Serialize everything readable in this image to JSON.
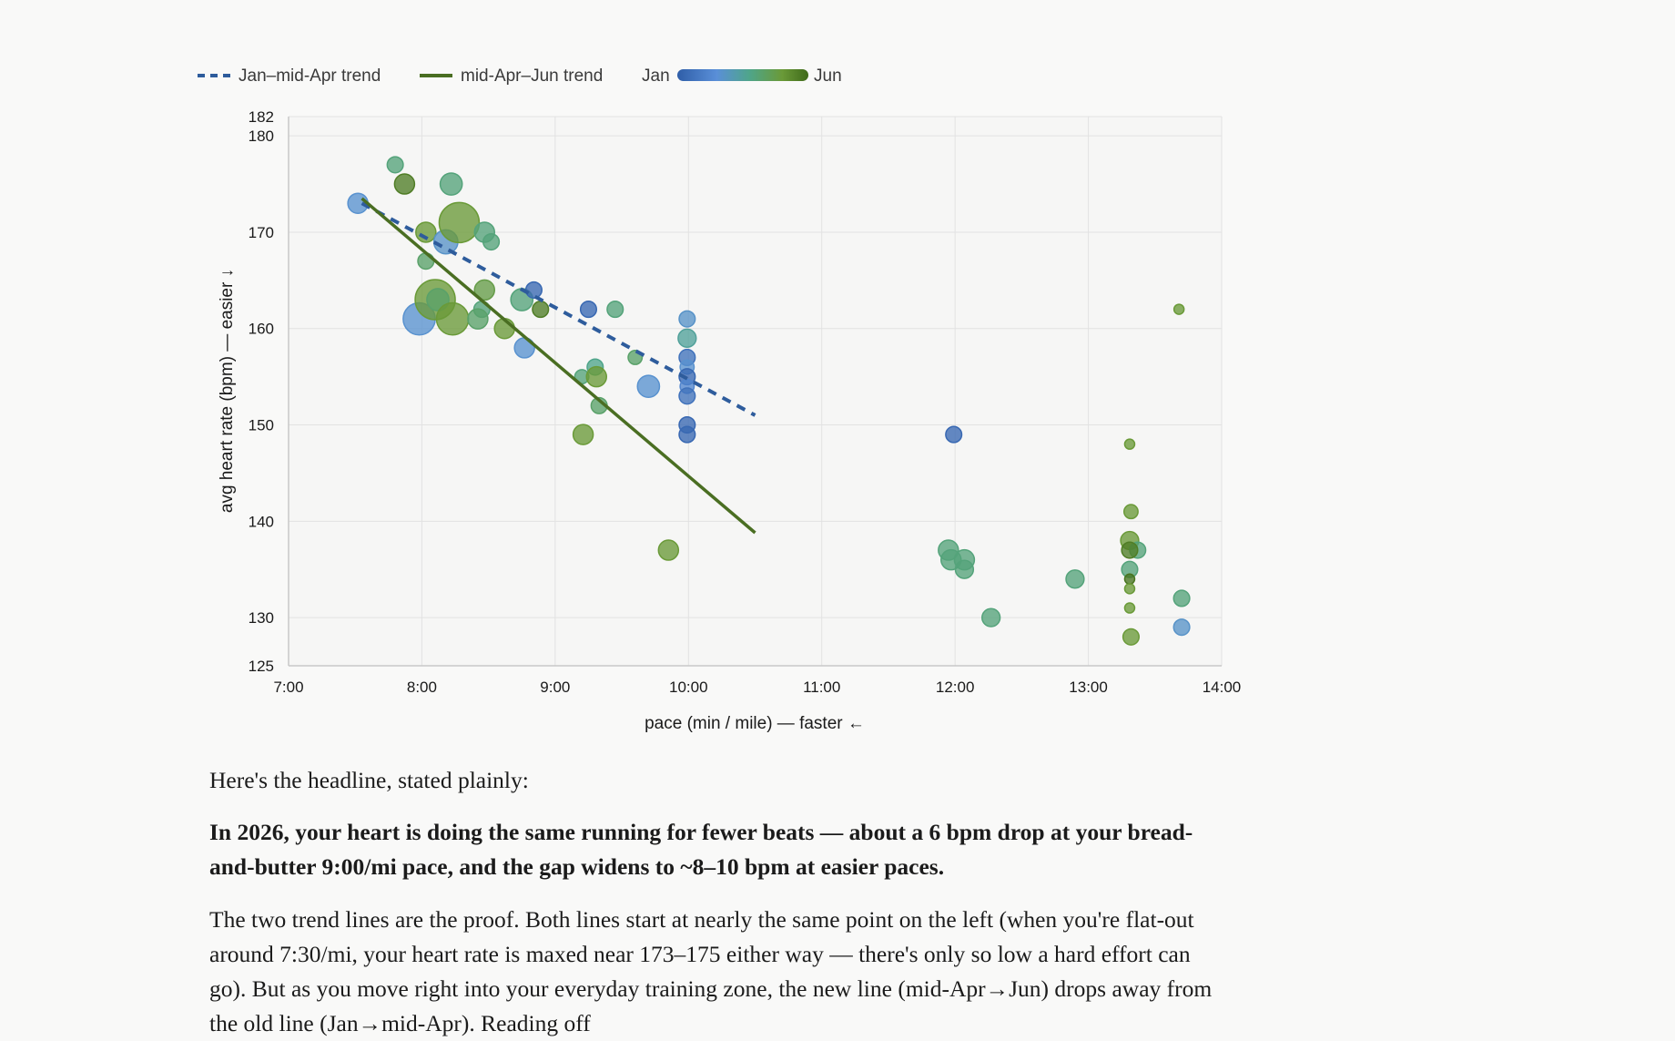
{
  "chart_data": {
    "type": "scatter",
    "xlabel": "pace  (min / mile)  —  faster ←",
    "ylabel": "avg heart rate (bpm)  —  easier ↓",
    "xlim": [
      7.0,
      14.0
    ],
    "ylim": [
      125,
      182
    ],
    "x_ticks": [
      7,
      8,
      9,
      10,
      11,
      12,
      13,
      14
    ],
    "x_tick_labels": [
      "7:00",
      "8:00",
      "9:00",
      "10:00",
      "11:00",
      "12:00",
      "13:00",
      "14:00"
    ],
    "y_ticks": [
      125,
      130,
      140,
      150,
      160,
      170,
      180,
      182
    ],
    "y_tick_labels": [
      "125",
      "130",
      "140",
      "150",
      "160",
      "170",
      "180",
      "182"
    ],
    "grid": true,
    "legend_position": "top-left",
    "legend": {
      "trend_a": "Jan–mid-Apr trend",
      "trend_b": "mid-Apr–Jun trend",
      "gradient_start": "Jan",
      "gradient_end": "Jun"
    },
    "colors": {
      "trend_a": "#2e5c9c",
      "trend_b": "#4a6e22",
      "gradient": [
        "#2f5ea8",
        "#5a8fd8",
        "#4fa58a",
        "#6a9a38",
        "#3f6a1a"
      ],
      "grid": "#e2e2e2",
      "axis": "#c8c8c8"
    },
    "trendlines": [
      {
        "name": "Jan–mid-Apr trend",
        "style": "dashed",
        "x": [
          7.55,
          10.5
        ],
        "y": [
          173.0,
          151.0
        ]
      },
      {
        "name": "mid-Apr–Jun trend",
        "style": "solid",
        "x": [
          7.55,
          10.5
        ],
        "y": [
          173.5,
          138.8
        ]
      }
    ],
    "point_encoding": {
      "color": "month_fraction_0_Jan_to_1_Jun",
      "size": "relative_marker_size"
    },
    "points": [
      {
        "x": 7.52,
        "y": 173,
        "size": 1.0,
        "month": 0.28
      },
      {
        "x": 7.8,
        "y": 177,
        "size": 0.8,
        "month": 0.55
      },
      {
        "x": 7.87,
        "y": 175,
        "size": 1.0,
        "month": 0.9
      },
      {
        "x": 8.22,
        "y": 175,
        "size": 1.1,
        "month": 0.55
      },
      {
        "x": 8.03,
        "y": 170,
        "size": 1.0,
        "month": 0.75
      },
      {
        "x": 8.18,
        "y": 169,
        "size": 1.2,
        "month": 0.3
      },
      {
        "x": 8.28,
        "y": 171,
        "size": 2.0,
        "month": 0.75
      },
      {
        "x": 8.47,
        "y": 170,
        "size": 1.0,
        "month": 0.55
      },
      {
        "x": 8.52,
        "y": 169,
        "size": 0.8,
        "month": 0.55
      },
      {
        "x": 8.03,
        "y": 167,
        "size": 0.8,
        "month": 0.6
      },
      {
        "x": 7.98,
        "y": 161,
        "size": 1.6,
        "month": 0.28
      },
      {
        "x": 8.1,
        "y": 163,
        "size": 2.0,
        "month": 0.75
      },
      {
        "x": 8.12,
        "y": 163,
        "size": 1.1,
        "month": 0.6
      },
      {
        "x": 8.23,
        "y": 161,
        "size": 1.6,
        "month": 0.75
      },
      {
        "x": 8.47,
        "y": 164,
        "size": 1.0,
        "month": 0.7
      },
      {
        "x": 8.45,
        "y": 162,
        "size": 0.8,
        "month": 0.55
      },
      {
        "x": 8.42,
        "y": 161,
        "size": 1.0,
        "month": 0.6
      },
      {
        "x": 8.62,
        "y": 160,
        "size": 1.0,
        "month": 0.75
      },
      {
        "x": 8.75,
        "y": 163,
        "size": 1.1,
        "month": 0.55
      },
      {
        "x": 8.84,
        "y": 164,
        "size": 0.8,
        "month": 0.05
      },
      {
        "x": 8.89,
        "y": 162,
        "size": 0.8,
        "month": 0.9
      },
      {
        "x": 8.77,
        "y": 158,
        "size": 1.0,
        "month": 0.28
      },
      {
        "x": 9.25,
        "y": 162,
        "size": 0.8,
        "month": 0.05
      },
      {
        "x": 9.45,
        "y": 162,
        "size": 0.8,
        "month": 0.55
      },
      {
        "x": 9.6,
        "y": 157,
        "size": 0.7,
        "month": 0.6
      },
      {
        "x": 9.3,
        "y": 156,
        "size": 0.8,
        "month": 0.5
      },
      {
        "x": 9.2,
        "y": 155,
        "size": 0.7,
        "month": 0.55
      },
      {
        "x": 9.31,
        "y": 155,
        "size": 1.0,
        "month": 0.75
      },
      {
        "x": 9.33,
        "y": 152,
        "size": 0.8,
        "month": 0.6
      },
      {
        "x": 9.7,
        "y": 154,
        "size": 1.1,
        "month": 0.28
      },
      {
        "x": 9.21,
        "y": 149,
        "size": 1.0,
        "month": 0.75
      },
      {
        "x": 9.85,
        "y": 137,
        "size": 1.0,
        "month": 0.75
      },
      {
        "x": 9.99,
        "y": 161,
        "size": 0.8,
        "month": 0.3
      },
      {
        "x": 9.99,
        "y": 159,
        "size": 0.9,
        "month": 0.45
      },
      {
        "x": 9.99,
        "y": 157,
        "size": 0.8,
        "month": 0.1
      },
      {
        "x": 9.99,
        "y": 156,
        "size": 0.7,
        "month": 0.28
      },
      {
        "x": 9.99,
        "y": 155,
        "size": 0.8,
        "month": 0.05
      },
      {
        "x": 9.99,
        "y": 154,
        "size": 0.7,
        "month": 0.2
      },
      {
        "x": 9.99,
        "y": 153,
        "size": 0.8,
        "month": 0.1
      },
      {
        "x": 9.99,
        "y": 150,
        "size": 0.8,
        "month": 0.05
      },
      {
        "x": 9.99,
        "y": 149,
        "size": 0.8,
        "month": 0.05
      },
      {
        "x": 11.99,
        "y": 149,
        "size": 0.8,
        "month": 0.05
      },
      {
        "x": 11.95,
        "y": 137,
        "size": 1.0,
        "month": 0.55
      },
      {
        "x": 11.97,
        "y": 136,
        "size": 1.0,
        "month": 0.55
      },
      {
        "x": 12.07,
        "y": 136,
        "size": 1.0,
        "month": 0.55
      },
      {
        "x": 12.07,
        "y": 135,
        "size": 0.9,
        "month": 0.55
      },
      {
        "x": 12.27,
        "y": 130,
        "size": 0.9,
        "month": 0.55
      },
      {
        "x": 12.9,
        "y": 134,
        "size": 0.9,
        "month": 0.55
      },
      {
        "x": 13.31,
        "y": 148,
        "size": 0.5,
        "month": 0.75
      },
      {
        "x": 13.32,
        "y": 141,
        "size": 0.7,
        "month": 0.75
      },
      {
        "x": 13.31,
        "y": 138,
        "size": 0.9,
        "month": 0.75
      },
      {
        "x": 13.37,
        "y": 137,
        "size": 0.8,
        "month": 0.55
      },
      {
        "x": 13.31,
        "y": 137,
        "size": 0.8,
        "month": 0.9
      },
      {
        "x": 13.31,
        "y": 135,
        "size": 0.8,
        "month": 0.55
      },
      {
        "x": 13.31,
        "y": 134,
        "size": 0.5,
        "month": 0.95
      },
      {
        "x": 13.31,
        "y": 133,
        "size": 0.5,
        "month": 0.75
      },
      {
        "x": 13.31,
        "y": 131,
        "size": 0.5,
        "month": 0.75
      },
      {
        "x": 13.32,
        "y": 128,
        "size": 0.8,
        "month": 0.75
      },
      {
        "x": 13.68,
        "y": 162,
        "size": 0.5,
        "month": 0.75
      },
      {
        "x": 13.7,
        "y": 132,
        "size": 0.8,
        "month": 0.55
      },
      {
        "x": 13.7,
        "y": 129,
        "size": 0.8,
        "month": 0.3
      }
    ]
  },
  "prose": {
    "intro": "Here's the headline, stated plainly:",
    "headline": "In 2026, your heart is doing the same running for fewer beats — about a 6 bpm drop at your bread-and-butter 9:00/mi pace, and the gap widens to ~8–10 bpm at easier paces.",
    "body": "The two trend lines are the proof. Both lines start at nearly the same point on the left (when you're flat-out around 7:30/mi, your heart rate is maxed near 173–175 either way — there's only so low a hard effort can go). But as you move right into your everyday training zone, the new line (mid-Apr→Jun) drops away from the old line (Jan→mid-Apr). Reading off"
  }
}
